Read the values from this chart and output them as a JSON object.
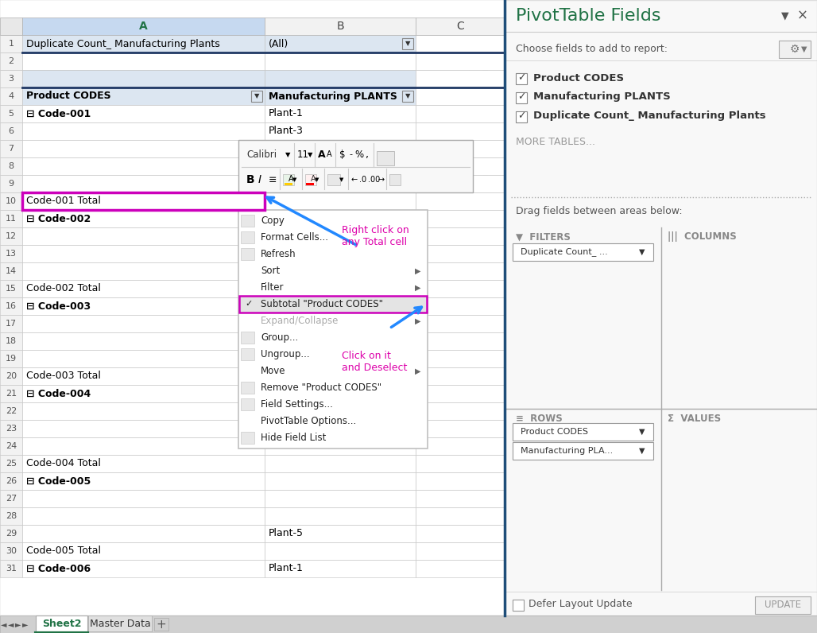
{
  "fig_width": 10.28,
  "fig_height": 7.96,
  "rows": [
    {
      "row": 1,
      "col_a": "Duplicate Count_ Manufacturing Plants",
      "col_b": "(All)",
      "bg_a": "#dce6f1",
      "bg_b": "#dce6f1",
      "filter_b": true
    },
    {
      "row": 2,
      "col_a": "",
      "col_b": "",
      "bg_a": "#ffffff",
      "bg_b": "#ffffff"
    },
    {
      "row": 3,
      "col_a": "",
      "col_b": "",
      "bg_a": "#dce6f1",
      "bg_b": "#dce6f1"
    },
    {
      "row": 4,
      "col_a": "Product CODES",
      "col_b": "Manufacturing PLANTS",
      "bg_a": "#dce6f1",
      "bg_b": "#dce6f1",
      "header": true
    },
    {
      "row": 5,
      "col_a": "⊟ Code-001",
      "col_b": "Plant-1",
      "bg_a": "#ffffff",
      "bg_b": "#ffffff",
      "bold_a": true
    },
    {
      "row": 6,
      "col_a": "",
      "col_b": "Plant-3",
      "bg_a": "#ffffff",
      "bg_b": "#ffffff"
    },
    {
      "row": 7,
      "col_a": "",
      "col_b": "",
      "bg_a": "#ffffff",
      "bg_b": "#ffffff"
    },
    {
      "row": 8,
      "col_a": "",
      "col_b": "",
      "bg_a": "#ffffff",
      "bg_b": "#ffffff"
    },
    {
      "row": 9,
      "col_a": "",
      "col_b": "",
      "bg_a": "#ffffff",
      "bg_b": "#ffffff"
    },
    {
      "row": 10,
      "col_a": "Code-001 Total",
      "col_b": "",
      "bg_a": "#ffffff",
      "bg_b": "#ffffff",
      "highlighted": true
    },
    {
      "row": 11,
      "col_a": "⊟ Code-002",
      "col_b": "",
      "bg_a": "#ffffff",
      "bg_b": "#ffffff",
      "bold_a": true
    },
    {
      "row": 12,
      "col_a": "",
      "col_b": "",
      "bg_a": "#ffffff",
      "bg_b": "#ffffff"
    },
    {
      "row": 13,
      "col_a": "",
      "col_b": "",
      "bg_a": "#ffffff",
      "bg_b": "#ffffff"
    },
    {
      "row": 14,
      "col_a": "",
      "col_b": "",
      "bg_a": "#ffffff",
      "bg_b": "#ffffff"
    },
    {
      "row": 15,
      "col_a": "Code-002 Total",
      "col_b": "",
      "bg_a": "#ffffff",
      "bg_b": "#ffffff"
    },
    {
      "row": 16,
      "col_a": "⊟ Code-003",
      "col_b": "",
      "bg_a": "#ffffff",
      "bg_b": "#ffffff",
      "bold_a": true
    },
    {
      "row": 17,
      "col_a": "",
      "col_b": "",
      "bg_a": "#ffffff",
      "bg_b": "#ffffff"
    },
    {
      "row": 18,
      "col_a": "",
      "col_b": "",
      "bg_a": "#ffffff",
      "bg_b": "#ffffff"
    },
    {
      "row": 19,
      "col_a": "",
      "col_b": "",
      "bg_a": "#ffffff",
      "bg_b": "#ffffff"
    },
    {
      "row": 20,
      "col_a": "Code-003 Total",
      "col_b": "",
      "bg_a": "#ffffff",
      "bg_b": "#ffffff"
    },
    {
      "row": 21,
      "col_a": "⊟ Code-004",
      "col_b": "",
      "bg_a": "#ffffff",
      "bg_b": "#ffffff",
      "bold_a": true
    },
    {
      "row": 22,
      "col_a": "",
      "col_b": "",
      "bg_a": "#ffffff",
      "bg_b": "#ffffff"
    },
    {
      "row": 23,
      "col_a": "",
      "col_b": "",
      "bg_a": "#ffffff",
      "bg_b": "#ffffff"
    },
    {
      "row": 24,
      "col_a": "",
      "col_b": "",
      "bg_a": "#ffffff",
      "bg_b": "#ffffff"
    },
    {
      "row": 25,
      "col_a": "Code-004 Total",
      "col_b": "",
      "bg_a": "#ffffff",
      "bg_b": "#ffffff"
    },
    {
      "row": 26,
      "col_a": "⊟ Code-005",
      "col_b": "",
      "bg_a": "#ffffff",
      "bg_b": "#ffffff",
      "bold_a": true
    },
    {
      "row": 27,
      "col_a": "",
      "col_b": "",
      "bg_a": "#ffffff",
      "bg_b": "#ffffff"
    },
    {
      "row": 28,
      "col_a": "",
      "col_b": "",
      "bg_a": "#ffffff",
      "bg_b": "#ffffff"
    },
    {
      "row": 29,
      "col_a": "",
      "col_b": "Plant-5",
      "bg_a": "#ffffff",
      "bg_b": "#ffffff"
    },
    {
      "row": 30,
      "col_a": "Code-005 Total",
      "col_b": "",
      "bg_a": "#ffffff",
      "bg_b": "#ffffff"
    },
    {
      "row": 31,
      "col_a": "⊟ Code-006",
      "col_b": "Plant-1",
      "bg_a": "#ffffff",
      "bg_b": "#ffffff",
      "bold_a": true
    }
  ],
  "context_menu_items": [
    {
      "text": "Copy",
      "icon": true,
      "enabled": true,
      "arrow": false,
      "checkmark": false,
      "highlighted": false
    },
    {
      "text": "Format Cells...",
      "icon": true,
      "enabled": true,
      "arrow": false,
      "checkmark": false,
      "highlighted": false
    },
    {
      "text": "Refresh",
      "icon": true,
      "enabled": true,
      "arrow": false,
      "checkmark": false,
      "highlighted": false
    },
    {
      "text": "Sort",
      "icon": false,
      "enabled": true,
      "arrow": true,
      "checkmark": false,
      "highlighted": false
    },
    {
      "text": "Filter",
      "icon": false,
      "enabled": true,
      "arrow": true,
      "checkmark": false,
      "highlighted": false
    },
    {
      "text": "Subtotal \"Product CODES\"",
      "icon": false,
      "enabled": true,
      "arrow": false,
      "checkmark": true,
      "highlighted": true
    },
    {
      "text": "Expand/Collapse",
      "icon": false,
      "enabled": false,
      "arrow": true,
      "checkmark": false,
      "highlighted": false
    },
    {
      "text": "Group...",
      "icon": true,
      "enabled": true,
      "arrow": false,
      "checkmark": false,
      "highlighted": false
    },
    {
      "text": "Ungroup...",
      "icon": true,
      "enabled": true,
      "arrow": false,
      "checkmark": false,
      "highlighted": false
    },
    {
      "text": "Move",
      "icon": false,
      "enabled": true,
      "arrow": true,
      "checkmark": false,
      "highlighted": false
    },
    {
      "text": "Remove \"Product CODES\"",
      "icon": true,
      "enabled": true,
      "arrow": false,
      "checkmark": false,
      "highlighted": false
    },
    {
      "text": "Field Settings...",
      "icon": true,
      "enabled": true,
      "arrow": false,
      "checkmark": false,
      "highlighted": false
    },
    {
      "text": "PivotTable Options...",
      "icon": false,
      "enabled": true,
      "arrow": false,
      "checkmark": false,
      "highlighted": false
    },
    {
      "text": "Hide Field List",
      "icon": true,
      "enabled": true,
      "arrow": false,
      "checkmark": false,
      "highlighted": false
    }
  ],
  "pivot_fields": [
    "Product CODES",
    "Manufacturing PLANTS",
    "Duplicate Count_ Manufacturing Plants"
  ],
  "annotation1": "Right click on\nany Total cell",
  "annotation2": "Click on it\nand Deselect",
  "annotation_color": "#dd00aa",
  "arrow_color": "#2288ff"
}
